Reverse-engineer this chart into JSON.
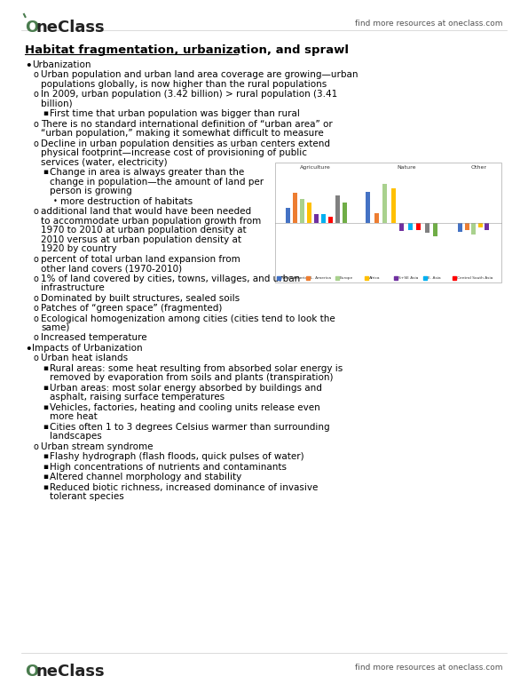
{
  "bg_color": "#ffffff",
  "title_text": "Habitat fragmentation, urbanization, and sprawl",
  "header_logo_text": "OneClass",
  "header_right_text": "find more resources at oneclass.com",
  "footer_logo_text": "OneClass",
  "footer_right_text": "find more resources at oneclass.com",
  "bullet_color": "#000000",
  "font_size_body": 7.5,
  "font_size_title": 9.5,
  "content": [
    {
      "level": 0,
      "text": "Urbanization"
    },
    {
      "level": 1,
      "text": "Urban population and urban land area coverage are growing—urban populations globally, is now higher than the rural populations"
    },
    {
      "level": 1,
      "text": "In 2009, urban population (3.42 billion) > rural population (3.41 billion)"
    },
    {
      "level": 2,
      "text": "First time that urban population was bigger than rural"
    },
    {
      "level": 1,
      "text": "There is no standard international definition of “urban area” or “urban population,” making it somewhat difficult to measure"
    },
    {
      "level": 1,
      "text": "Decline in urban population densities as urban centers extend physical footprint—increase cost of provisioning of public services (water, electricity)"
    },
    {
      "level": 2,
      "text": "Change in area is always greater than the change in population—the amount of land per person is growing"
    },
    {
      "level": 3,
      "text": "more destruction of habitats"
    },
    {
      "level": 1,
      "text": "additional land that would have been needed to accommodate urban population growth from 1970 to 2010 at urban population density at 2010 versus at urban population density at 1920 by country"
    },
    {
      "level": 1,
      "text": "percent of total urban land expansion from other land covers (1970-2010)"
    },
    {
      "level": 1,
      "text": "1% of land covered by cities, towns, villages, and urban infrastructure"
    },
    {
      "level": 1,
      "text": "Dominated by built structures, sealed soils"
    },
    {
      "level": 1,
      "text": "Patches of “green space” (fragmented)"
    },
    {
      "level": 1,
      "text": "Ecological homogenization among cities (cities tend to look the same)"
    },
    {
      "level": 1,
      "text": "Increased temperature"
    },
    {
      "level": 0,
      "text": "Impacts of Urbanization"
    },
    {
      "level": 1,
      "text": "Urban heat islands"
    },
    {
      "level": 2,
      "text": "Rural areas: some heat resulting from absorbed solar energy is removed by evaporation from soils and plants (transpiration)"
    },
    {
      "level": 2,
      "text": "Urban areas: most solar energy absorbed by buildings and asphalt, raising surface temperatures"
    },
    {
      "level": 2,
      "text": "Vehicles, factories, heating and cooling units release even more heat"
    },
    {
      "level": 2,
      "text": "Cities often 1 to 3 degrees Celsius warmer than surrounding landscapes"
    },
    {
      "level": 1,
      "text": "Urban stream syndrome"
    },
    {
      "level": 2,
      "text": "Flashy hydrograph (flash floods, quick pulses of water)"
    },
    {
      "level": 2,
      "text": "High concentrations of nutrients and contaminants"
    },
    {
      "level": 2,
      "text": "Altered channel morphology and stability"
    },
    {
      "level": 2,
      "text": "Reduced biotic richness, increased dominance of invasive tolerant species"
    }
  ],
  "chart_colors": [
    "#4472c4",
    "#ed7d31",
    "#a9d18e",
    "#ffc000",
    "#7030a0",
    "#00b0f0",
    "#ff0000",
    "#808080",
    "#70ad47"
  ],
  "logo_color": "#4a7c4e"
}
